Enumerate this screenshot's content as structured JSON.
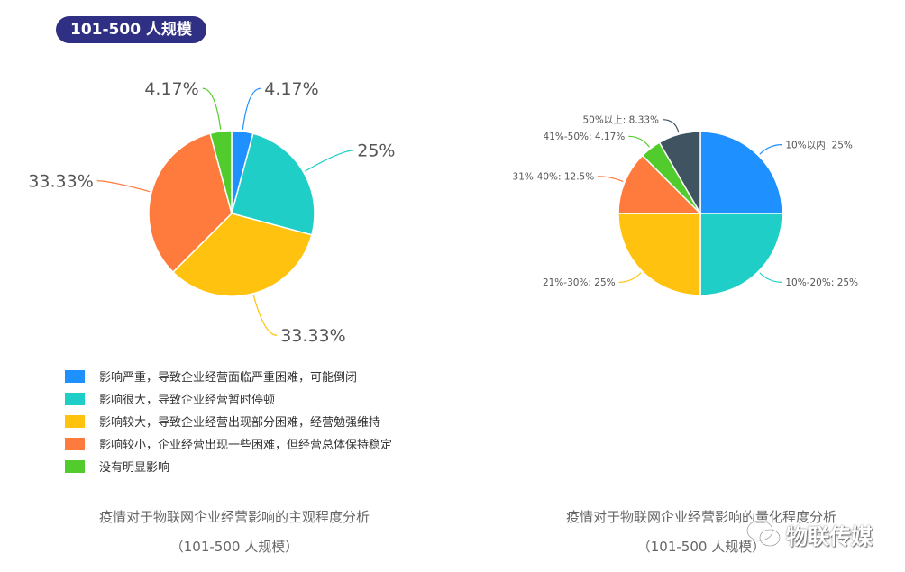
{
  "badge": {
    "label": "101-500 人规模"
  },
  "charts": {
    "chart_data": [
      {
        "type": "pie",
        "categories": [
          "影响严重，导致企业经营面临严重困难，可能倒闭",
          "影响很大，导致企业经营暂时停顿",
          "影响较大，导致企业经营出现部分困难，经营勉强维持",
          "影响较小，企业经营出现一些困难，但经营总体保持稳定",
          "没有明显影响"
        ],
        "values": [
          4.17,
          25,
          33.33,
          33.33,
          4.17
        ],
        "labels": [
          "4.17%",
          "25%",
          "33.33%",
          "33.33%",
          "4.17%"
        ],
        "colors": [
          "#1e90ff",
          "#1fcfc7",
          "#ffc20e",
          "#ff7a3d",
          "#52cc2c"
        ],
        "legend": "bottom",
        "caption": "疫情对于物联网企业经营影响的主观程度分析",
        "subcaption": "（101-500 人规模）"
      },
      {
        "type": "pie",
        "categories": [
          "10%以内",
          "10%-20%",
          "21%-30%",
          "31%-40%",
          "41%-50%",
          "50%以上"
        ],
        "values": [
          25,
          25,
          25,
          12.5,
          4.17,
          8.33
        ],
        "labels": [
          "10%以内: 25%",
          "10%-20%: 25%",
          "21%-30%: 25%",
          "31%-40%: 12.5%",
          "41%-50%: 4.17%",
          "50%以上: 8.33%"
        ],
        "colors": [
          "#1e90ff",
          "#1fcfc7",
          "#ffc20e",
          "#ff7a3d",
          "#52cc2c",
          "#3f5360"
        ],
        "caption": "疫情对于物联网企业经营影响的量化程度分析",
        "subcaption": "（101-500 人规模）"
      }
    ]
  },
  "watermark": {
    "label": "物联传媒",
    "icon": "wechat-icon"
  }
}
